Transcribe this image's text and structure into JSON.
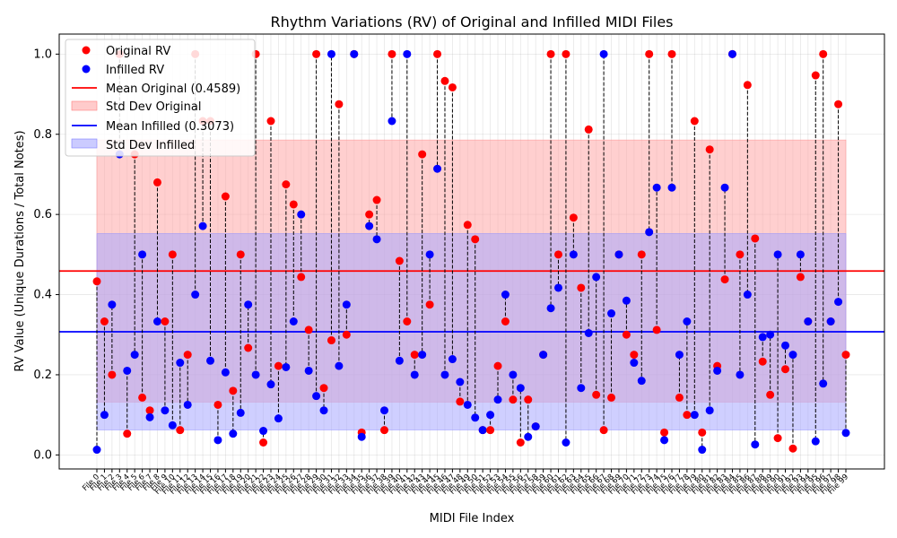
{
  "chart_data": {
    "type": "scatter",
    "title": "Rhythm Variations (RV) of Original and Infilled MIDI Files",
    "xlabel": "MIDI File Index",
    "ylabel": "RV Value (Unique Durations / Total Notes)",
    "ylim": [
      -0.035,
      1.05
    ],
    "yticks": [
      0.0,
      0.2,
      0.4,
      0.6,
      0.8,
      1.0
    ],
    "ytick_labels": [
      "0.0",
      "0.2",
      "0.4",
      "0.6",
      "0.8",
      "1.0"
    ],
    "grid": true,
    "legend_position": "top-left",
    "colors": {
      "original": "#ff0000",
      "infilled": "#0000ff",
      "original_band": "#ffa8a8",
      "infilled_band": "#a8a8ff",
      "connector": "#000000"
    },
    "categories": [
      "File 0",
      "File 1",
      "File 2",
      "File 3",
      "File 4",
      "File 5",
      "File 6",
      "File 7",
      "File 8",
      "File 9",
      "File 10",
      "File 11",
      "File 12",
      "File 13",
      "File 14",
      "File 15",
      "File 16",
      "File 17",
      "File 18",
      "File 19",
      "File 20",
      "File 21",
      "File 22",
      "File 23",
      "File 24",
      "File 25",
      "File 26",
      "File 27",
      "File 28",
      "File 29",
      "File 30",
      "File 31",
      "File 32",
      "File 33",
      "File 34",
      "File 35",
      "File 36",
      "File 37",
      "File 38",
      "File 39",
      "File 40",
      "File 41",
      "File 42",
      "File 43",
      "File 44",
      "File 45",
      "File 46",
      "File 47",
      "File 48",
      "File 49",
      "File 50",
      "File 51",
      "File 52",
      "File 53",
      "File 54",
      "File 55",
      "File 56",
      "File 57",
      "File 58",
      "File 59",
      "File 60",
      "File 61",
      "File 62",
      "File 63",
      "File 64",
      "File 65",
      "File 66",
      "File 67",
      "File 68",
      "File 69",
      "File 70",
      "File 71",
      "File 72",
      "File 73",
      "File 74",
      "File 75",
      "File 76",
      "File 77",
      "File 78",
      "File 79",
      "File 80",
      "File 81",
      "File 82",
      "File 83",
      "File 84",
      "File 85",
      "File 86",
      "File 87",
      "File 88",
      "File 89",
      "File 90",
      "File 91",
      "File 92",
      "File 93",
      "File 94",
      "File 95",
      "File 96",
      "File 97",
      "File 98",
      "File 99"
    ],
    "series": [
      {
        "name": "Original RV",
        "values": [
          0.433,
          0.333,
          0.2,
          1.0,
          0.053,
          0.75,
          0.143,
          0.111,
          0.68,
          0.333,
          0.5,
          0.062,
          0.25,
          1.0,
          0.833,
          0.833,
          0.125,
          0.645,
          0.16,
          0.5,
          0.267,
          1.0,
          0.031,
          0.833,
          0.222,
          0.675,
          0.625,
          0.444,
          0.312,
          1.0,
          0.167,
          0.286,
          0.875,
          0.3,
          1.0,
          0.056,
          0.6,
          0.636,
          0.062,
          1.0,
          0.484,
          0.333,
          0.25,
          0.75,
          0.375,
          1.0,
          0.933,
          0.917,
          0.133,
          0.574,
          0.538,
          0.062,
          0.062,
          0.222,
          0.333,
          0.138,
          0.031,
          0.138,
          0.071,
          0.25,
          1.0,
          0.5,
          1.0,
          0.592,
          0.417,
          0.812,
          0.15,
          0.062,
          0.143,
          0.5,
          0.3,
          0.25,
          0.5,
          1.0,
          0.312,
          0.056,
          1.0,
          0.143,
          0.1,
          0.833,
          0.056,
          0.762,
          0.222,
          0.438,
          1.0,
          0.5,
          0.923,
          0.54,
          0.233,
          0.15,
          0.042,
          0.214,
          0.016,
          0.444,
          0.333,
          0.947,
          1.0,
          0.333,
          0.875,
          0.25
        ]
      },
      {
        "name": "Infilled RV",
        "values": [
          0.013,
          0.1,
          0.375,
          0.75,
          0.21,
          0.25,
          0.5,
          0.094,
          0.333,
          0.111,
          0.074,
          0.23,
          0.125,
          0.4,
          0.571,
          0.235,
          0.037,
          0.206,
          0.053,
          0.105,
          0.375,
          0.2,
          0.06,
          0.176,
          0.091,
          0.219,
          0.333,
          0.6,
          0.21,
          0.147,
          0.111,
          1.0,
          0.222,
          0.375,
          1.0,
          0.045,
          0.571,
          0.538,
          0.111,
          0.833,
          0.235,
          1.0,
          0.2,
          0.25,
          0.5,
          0.714,
          0.2,
          0.239,
          0.182,
          0.125,
          0.093,
          0.062,
          0.1,
          0.138,
          0.4,
          0.2,
          0.167,
          0.045,
          0.071,
          0.25,
          0.366,
          0.417,
          0.031,
          0.5,
          0.167,
          0.304,
          0.444,
          1.0,
          0.353,
          0.5,
          0.385,
          0.23,
          0.185,
          0.556,
          0.667,
          0.037,
          0.667,
          0.25,
          0.333,
          0.1,
          0.013,
          0.111,
          0.21,
          0.667,
          1.0,
          0.2,
          0.4,
          0.026,
          0.294,
          0.3,
          0.5,
          0.273,
          0.25,
          0.5,
          0.333,
          0.034,
          0.178,
          0.333,
          0.382,
          0.055
        ]
      }
    ],
    "mean_original": 0.4589,
    "std_original": 0.3269,
    "mean_infilled": 0.3073,
    "std_infilled": 0.2449,
    "legend": [
      "Original RV",
      "Infilled RV",
      "Mean Original (0.4589)",
      "Std Dev Original",
      "Mean Infilled (0.3073)",
      "Std Dev Infilled"
    ]
  }
}
